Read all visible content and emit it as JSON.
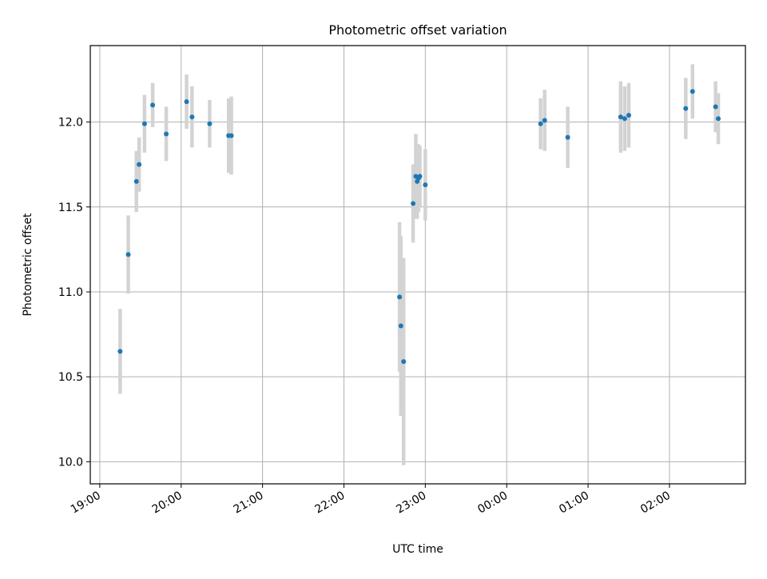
{
  "chart_data": {
    "type": "scatter",
    "title": "Photometric offset variation",
    "xlabel": "UTC time",
    "ylabel": "Photometric offset",
    "x_axis_type": "time",
    "x_tick_labels": [
      "19:00",
      "20:00",
      "21:00",
      "22:00",
      "23:00",
      "00:00",
      "01:00",
      "02:00"
    ],
    "xlim": [
      "18:53",
      "02:56"
    ],
    "ylim": [
      9.87,
      12.45
    ],
    "y_ticks": [
      10.0,
      10.5,
      11.0,
      11.5,
      12.0
    ],
    "y_tick_labels": [
      "10.0",
      "10.5",
      "11.0",
      "11.5",
      "12.0"
    ],
    "grid": true,
    "errorbar_color": "#d3d3d3",
    "marker_color": "#1f77b4",
    "points": [
      {
        "time": "19:15",
        "y": 10.65,
        "err": 0.25
      },
      {
        "time": "19:21",
        "y": 11.22,
        "err": 0.23
      },
      {
        "time": "19:27",
        "y": 11.65,
        "err": 0.18
      },
      {
        "time": "19:29",
        "y": 11.75,
        "err": 0.16
      },
      {
        "time": "19:33",
        "y": 11.99,
        "err": 0.17
      },
      {
        "time": "19:39",
        "y": 12.1,
        "err": 0.13
      },
      {
        "time": "19:49",
        "y": 11.93,
        "err": 0.16
      },
      {
        "time": "20:04",
        "y": 12.12,
        "err": 0.16
      },
      {
        "time": "20:08",
        "y": 12.03,
        "err": 0.18
      },
      {
        "time": "20:21",
        "y": 11.99,
        "err": 0.14
      },
      {
        "time": "20:35",
        "y": 11.92,
        "err": 0.22
      },
      {
        "time": "20:37",
        "y": 11.92,
        "err": 0.23
      },
      {
        "time": "22:41",
        "y": 10.97,
        "err": 0.44
      },
      {
        "time": "22:42",
        "y": 10.8,
        "err": 0.53
      },
      {
        "time": "22:44",
        "y": 10.59,
        "err": 0.61
      },
      {
        "time": "22:51",
        "y": 11.52,
        "err": 0.23
      },
      {
        "time": "22:53",
        "y": 11.68,
        "err": 0.25
      },
      {
        "time": "22:54",
        "y": 11.65,
        "err": 0.22
      },
      {
        "time": "22:55",
        "y": 11.67,
        "err": 0.2
      },
      {
        "time": "22:56",
        "y": 11.68,
        "err": 0.18
      },
      {
        "time": "23:00",
        "y": 11.63,
        "err": 0.21
      },
      {
        "time": "00:25",
        "y": 11.99,
        "err": 0.15
      },
      {
        "time": "00:28",
        "y": 12.01,
        "err": 0.18
      },
      {
        "time": "00:45",
        "y": 11.91,
        "err": 0.18
      },
      {
        "time": "01:24",
        "y": 12.03,
        "err": 0.21
      },
      {
        "time": "01:27",
        "y": 12.02,
        "err": 0.19
      },
      {
        "time": "01:30",
        "y": 12.04,
        "err": 0.19
      },
      {
        "time": "02:12",
        "y": 12.08,
        "err": 0.18
      },
      {
        "time": "02:17",
        "y": 12.18,
        "err": 0.16
      },
      {
        "time": "02:34",
        "y": 12.09,
        "err": 0.15
      },
      {
        "time": "02:36",
        "y": 12.02,
        "err": 0.15
      }
    ]
  }
}
